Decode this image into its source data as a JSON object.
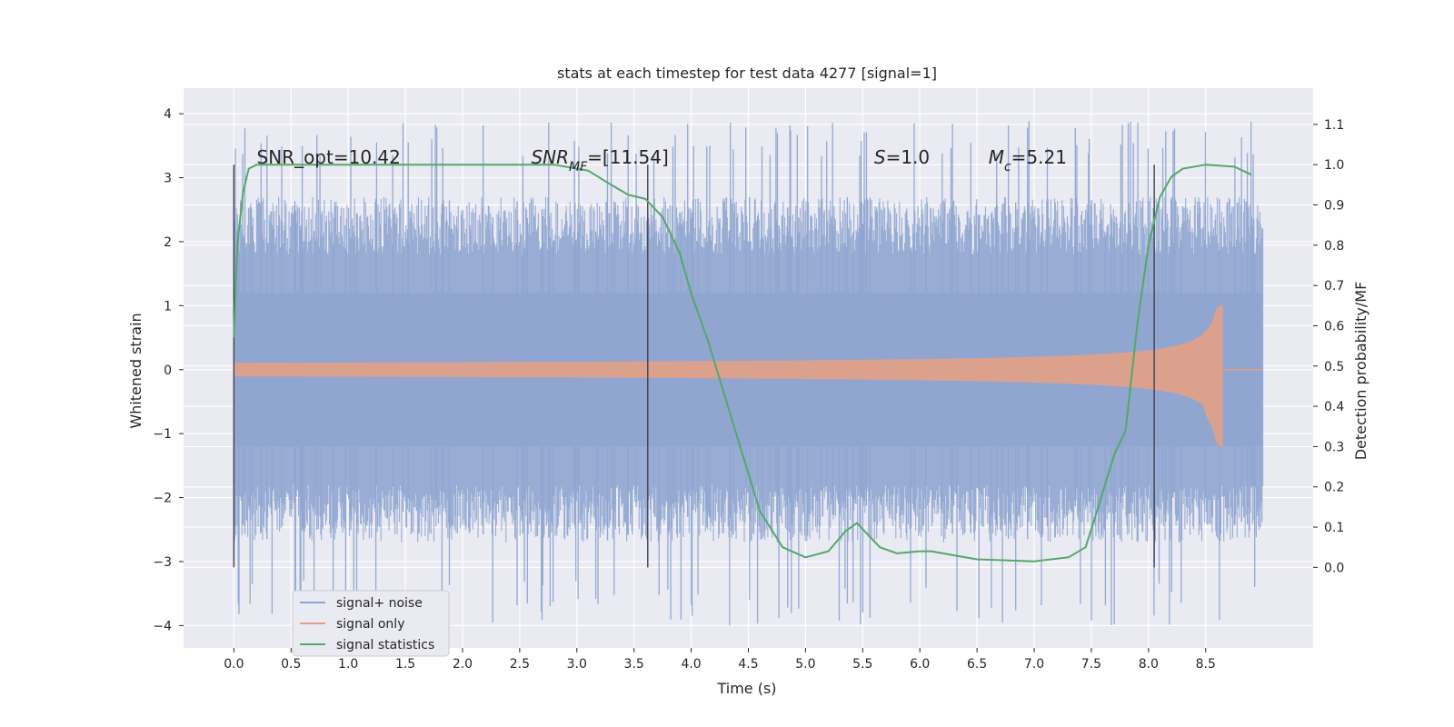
{
  "chart_data": {
    "type": "line",
    "title": "stats at each timestep for test data 4277 [signal=1]",
    "xlabel": "Time (s)",
    "ylabel_left": "Whitened strain",
    "ylabel_right": "Detection probability/MF",
    "xlim": [
      -0.44,
      9.44
    ],
    "ylim_left": [
      -4.35,
      4.4
    ],
    "ylim_right": [
      -0.2,
      1.19
    ],
    "xticks": [
      "0.0",
      "0.5",
      "1.0",
      "1.5",
      "2.0",
      "2.5",
      "3.0",
      "3.5",
      "4.0",
      "4.5",
      "5.0",
      "5.5",
      "6.0",
      "6.5",
      "7.0",
      "7.5",
      "8.0",
      "8.5"
    ],
    "yticks_left": [
      "4",
      "3",
      "2",
      "1",
      "0",
      "−1",
      "−2",
      "−3",
      "−4"
    ],
    "yticks_right": [
      "1.1",
      "1.0",
      "0.9",
      "0.8",
      "0.7",
      "0.6",
      "0.5",
      "0.4",
      "0.3",
      "0.2",
      "0.1",
      "0.0"
    ],
    "grid": true,
    "legend_position": "lower-left",
    "series": [
      {
        "name": "signal+ noise",
        "color": "#8fa5d0",
        "noise_time_range": [
          0.0,
          9.0
        ],
        "noise_amplitude_range": [
          -4.0,
          3.9
        ]
      },
      {
        "name": "signal only",
        "color": "#e0a088",
        "chirp_time_range": [
          0.0,
          8.65
        ],
        "chirp_peak_amplitude": 1.0
      },
      {
        "name": "signal statistics",
        "color": "#55a868",
        "x": [
          0.0,
          0.03,
          0.08,
          0.13,
          0.2,
          0.5,
          1.0,
          2.0,
          2.8,
          3.1,
          3.3,
          3.45,
          3.6,
          3.75,
          3.9,
          4.0,
          4.15,
          4.3,
          4.45,
          4.6,
          4.8,
          5.0,
          5.2,
          5.35,
          5.45,
          5.55,
          5.65,
          5.8,
          6.0,
          6.1,
          6.3,
          6.5,
          7.0,
          7.3,
          7.45,
          7.55,
          7.7,
          7.8,
          7.9,
          8.0,
          8.1,
          8.2,
          8.3,
          8.5,
          8.75,
          8.9
        ],
        "y": [
          0.57,
          0.8,
          0.93,
          0.99,
          1.0,
          1.0,
          1.0,
          1.0,
          1.0,
          0.985,
          0.95,
          0.925,
          0.915,
          0.87,
          0.78,
          0.68,
          0.56,
          0.42,
          0.28,
          0.14,
          0.05,
          0.025,
          0.04,
          0.09,
          0.11,
          0.08,
          0.05,
          0.035,
          0.04,
          0.04,
          0.03,
          0.02,
          0.015,
          0.025,
          0.05,
          0.14,
          0.28,
          0.34,
          0.6,
          0.8,
          0.92,
          0.97,
          0.99,
          1.0,
          0.995,
          0.975
        ]
      }
    ],
    "vertical_markers": [
      0.0,
      3.62,
      8.05
    ],
    "annotations": [
      {
        "x": 0.2,
        "text": "SNR_opt=10.42"
      },
      {
        "x": 2.6,
        "text": "SNR",
        "sub": "MF",
        "rest": "=[11.54]"
      },
      {
        "x": 5.6,
        "text": "S",
        "rest": "=1.0"
      },
      {
        "x": 6.6,
        "text": "M",
        "sub": "c",
        "rest": "=5.21"
      }
    ]
  }
}
